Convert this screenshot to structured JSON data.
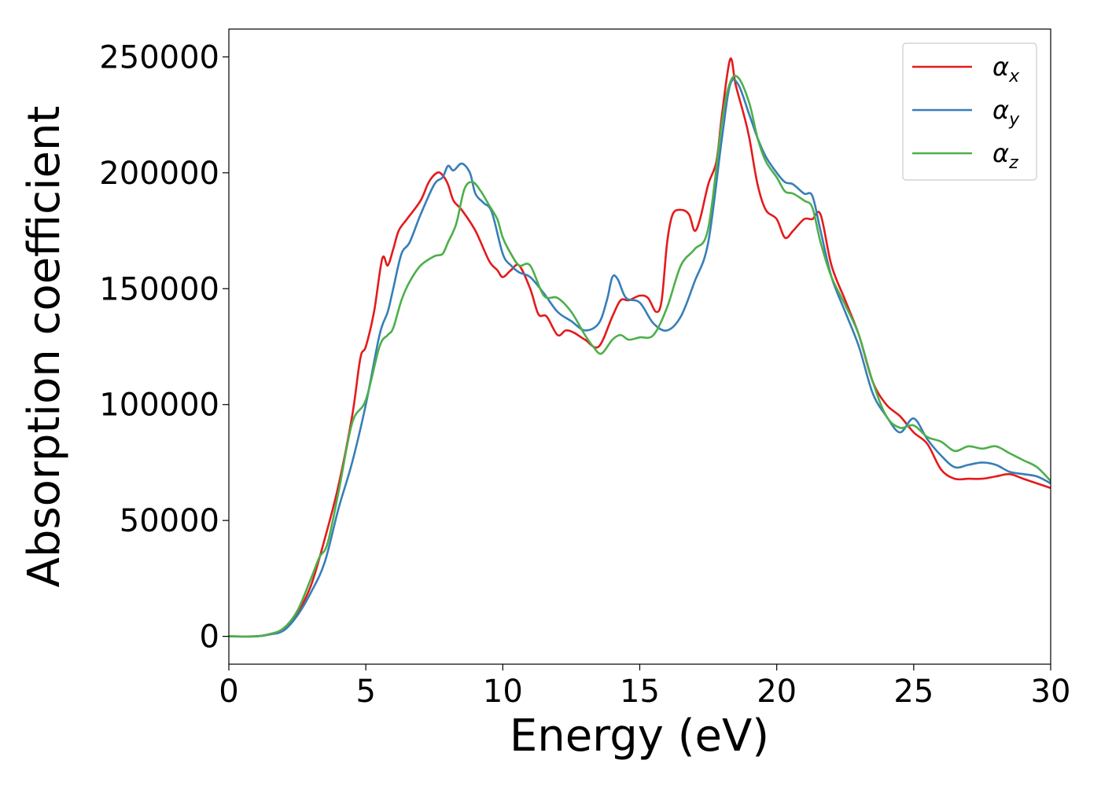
{
  "chart_data": {
    "type": "line",
    "xlabel": "Energy (eV)",
    "ylabel": "Absorption coefficient",
    "xlim": [
      0,
      30
    ],
    "ylim": [
      -12000,
      262000
    ],
    "xticks": [
      0,
      5,
      10,
      15,
      20,
      25,
      30
    ],
    "yticks": [
      0,
      50000,
      100000,
      150000,
      200000,
      250000
    ],
    "xtick_labels": [
      "0",
      "5",
      "10",
      "15",
      "20",
      "25",
      "30"
    ],
    "ytick_labels": [
      "0",
      "50000",
      "100000",
      "150000",
      "200000",
      "250000"
    ],
    "grid": false,
    "legend_position": "top-right",
    "series": [
      {
        "name": "αx",
        "symbol": "α",
        "sub": "x",
        "color": "#e41a1c",
        "x": [
          0,
          1,
          1.5,
          2,
          2.5,
          3,
          3.5,
          4,
          4.5,
          4.8,
          5,
          5.3,
          5.6,
          5.8,
          6,
          6.2,
          6.5,
          7,
          7.3,
          7.6,
          7.8,
          8,
          8.2,
          8.5,
          9,
          9.5,
          9.8,
          10,
          10.3,
          10.6,
          11,
          11.3,
          11.6,
          12,
          12.3,
          12.6,
          13,
          13.5,
          14,
          14.3,
          14.6,
          15,
          15.3,
          15.6,
          15.8,
          16,
          16.2,
          16.5,
          16.8,
          17,
          17.2,
          17.5,
          17.8,
          18,
          18.3,
          18.5,
          18.8,
          19,
          19.3,
          19.6,
          20,
          20.3,
          20.6,
          21,
          21.3,
          21.6,
          22,
          22.5,
          23,
          23.5,
          24,
          24.5,
          25,
          25.5,
          26,
          26.5,
          27,
          27.5,
          28,
          28.5,
          29,
          29.5,
          30
        ],
        "y": [
          0,
          0,
          1000,
          3000,
          10000,
          22000,
          42000,
          65000,
          95000,
          120000,
          125000,
          140000,
          163000,
          160000,
          167000,
          175000,
          180000,
          188000,
          196000,
          200000,
          199000,
          195000,
          188000,
          184000,
          175000,
          162000,
          158000,
          155000,
          158000,
          160000,
          150000,
          139000,
          138000,
          130000,
          132000,
          131000,
          128000,
          125000,
          138000,
          145000,
          145000,
          147000,
          146000,
          140000,
          145000,
          170000,
          182000,
          184000,
          182000,
          175000,
          180000,
          195000,
          205000,
          225000,
          249000,
          238000,
          225000,
          215000,
          195000,
          184000,
          180000,
          172000,
          175000,
          180000,
          180000,
          182000,
          160000,
          145000,
          130000,
          110000,
          100000,
          95000,
          88000,
          83000,
          72000,
          68000,
          68000,
          68000,
          69000,
          70000,
          68000,
          66000,
          64000
        ]
      },
      {
        "name": "αy",
        "symbol": "α",
        "sub": "y",
        "color": "#377eb8",
        "x": [
          0,
          1,
          1.5,
          2,
          2.5,
          3,
          3.5,
          4,
          4.5,
          5,
          5.5,
          5.8,
          6,
          6.3,
          6.6,
          7,
          7.5,
          7.8,
          8,
          8.2,
          8.5,
          8.8,
          9,
          9.3,
          9.6,
          10,
          10.3,
          10.6,
          11,
          11.5,
          12,
          12.5,
          13,
          13.5,
          13.8,
          14,
          14.2,
          14.5,
          15,
          15.5,
          16,
          16.5,
          17,
          17.5,
          18,
          18.3,
          18.6,
          19,
          19.3,
          19.6,
          20,
          20.3,
          20.6,
          21,
          21.3,
          21.6,
          22,
          22.5,
          23,
          23.5,
          24,
          24.5,
          25,
          25.5,
          26,
          26.5,
          27,
          27.5,
          28,
          28.5,
          29,
          29.5,
          30
        ],
        "y": [
          0,
          0,
          800,
          2500,
          9000,
          19000,
          32000,
          55000,
          75000,
          100000,
          130000,
          140000,
          150000,
          165000,
          170000,
          182000,
          195000,
          198000,
          203000,
          201000,
          204000,
          200000,
          191000,
          187000,
          183000,
          165000,
          160000,
          157000,
          155000,
          148000,
          140000,
          136000,
          132000,
          135000,
          145000,
          155000,
          154000,
          146000,
          144000,
          135000,
          132000,
          138000,
          153000,
          170000,
          215000,
          238000,
          238000,
          225000,
          215000,
          207000,
          200000,
          196000,
          195000,
          191000,
          190000,
          175000,
          155000,
          140000,
          125000,
          105000,
          95000,
          88000,
          94000,
          85000,
          78000,
          73000,
          74000,
          75000,
          74000,
          71000,
          70000,
          69000,
          66000
        ]
      },
      {
        "name": "αz",
        "symbol": "α",
        "sub": "z",
        "color": "#4daf4a",
        "x": [
          0,
          1,
          1.5,
          2,
          2.5,
          3,
          3.3,
          3.6,
          4,
          4.5,
          5,
          5.5,
          5.8,
          6,
          6.3,
          6.6,
          7,
          7.5,
          7.8,
          8,
          8.3,
          8.6,
          8.9,
          9.2,
          9.5,
          9.8,
          10,
          10.3,
          10.6,
          11,
          11.5,
          12,
          12.5,
          13,
          13.3,
          13.6,
          14,
          14.3,
          14.6,
          15,
          15.5,
          16,
          16.5,
          17,
          17.5,
          18,
          18.3,
          18.6,
          19,
          19.3,
          19.6,
          20,
          20.3,
          20.6,
          21,
          21.3,
          21.6,
          22,
          22.5,
          23,
          23.5,
          24,
          24.5,
          25,
          25.5,
          26,
          26.5,
          27,
          27.5,
          28,
          28.5,
          29,
          29.5,
          30
        ],
        "y": [
          0,
          0,
          1000,
          3500,
          11000,
          25000,
          34000,
          40000,
          62000,
          92000,
          102000,
          125000,
          130000,
          133000,
          145000,
          153000,
          160000,
          164000,
          165000,
          170000,
          178000,
          193000,
          196000,
          192000,
          186000,
          180000,
          172000,
          165000,
          160000,
          160000,
          147000,
          146000,
          140000,
          130000,
          125000,
          122000,
          128000,
          130000,
          128000,
          129000,
          130000,
          142000,
          160000,
          167000,
          176000,
          222000,
          239000,
          241000,
          230000,
          215000,
          205000,
          198000,
          192000,
          191000,
          188000,
          185000,
          170000,
          155000,
          143000,
          130000,
          110000,
          95000,
          90000,
          91000,
          86000,
          84000,
          80000,
          82000,
          81000,
          82000,
          79000,
          76000,
          73000,
          67000
        ]
      }
    ]
  }
}
